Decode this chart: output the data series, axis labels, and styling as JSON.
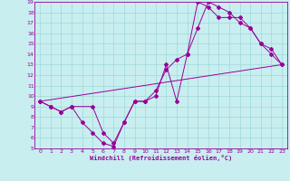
{
  "xlabel": "Windchill (Refroidissement éolien,°C)",
  "xlim": [
    -0.5,
    23.5
  ],
  "ylim": [
    5,
    19
  ],
  "xticks": [
    0,
    1,
    2,
    3,
    4,
    5,
    6,
    7,
    8,
    9,
    10,
    11,
    12,
    13,
    14,
    15,
    16,
    17,
    18,
    19,
    20,
    21,
    22,
    23
  ],
  "yticks": [
    5,
    6,
    7,
    8,
    9,
    10,
    11,
    12,
    13,
    14,
    15,
    16,
    17,
    18,
    19
  ],
  "bg_color": "#c8eef0",
  "line_color": "#990099",
  "grid_color": "#a0d8d8",
  "line1_x": [
    0,
    1,
    2,
    3,
    4,
    5,
    6,
    7,
    8,
    9,
    10,
    11,
    12,
    13,
    14,
    15,
    16,
    17,
    18,
    19,
    20,
    21,
    22,
    23
  ],
  "line1_y": [
    9.5,
    9.0,
    8.5,
    9.0,
    7.5,
    6.5,
    5.5,
    5.2,
    7.5,
    9.5,
    9.5,
    10.0,
    13.0,
    9.5,
    14.0,
    16.5,
    19.0,
    18.5,
    18.0,
    17.0,
    16.5,
    15.0,
    14.0,
    13.0
  ],
  "line2_x": [
    0,
    1,
    2,
    3,
    5,
    6,
    7,
    8,
    9,
    10,
    11,
    12,
    13,
    14,
    15,
    16,
    17,
    18,
    19,
    20,
    21,
    22,
    23
  ],
  "line2_y": [
    9.5,
    9.0,
    8.5,
    9.0,
    9.0,
    6.5,
    5.5,
    7.5,
    9.5,
    9.5,
    10.5,
    12.5,
    13.5,
    14.0,
    19.0,
    18.5,
    17.5,
    17.5,
    17.5,
    16.5,
    15.0,
    14.5,
    13.0
  ],
  "line3_x": [
    0,
    23
  ],
  "line3_y": [
    9.5,
    13.0
  ]
}
